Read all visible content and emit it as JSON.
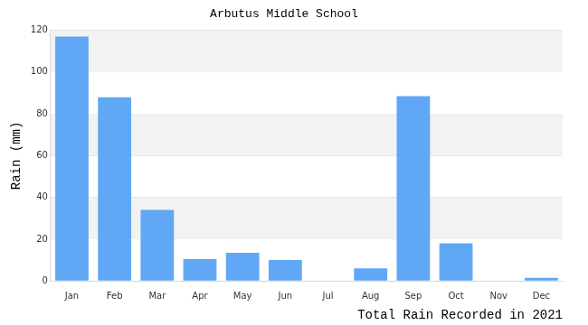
{
  "chart_data": {
    "type": "bar",
    "title": "Arbutus Middle School",
    "x_label": "Total Rain Recorded in 2021",
    "y_label": "Rain (mm)",
    "categories": [
      "Jan",
      "Feb",
      "Mar",
      "Apr",
      "May",
      "Jun",
      "Jul",
      "Aug",
      "Sep",
      "Oct",
      "Nov",
      "Dec"
    ],
    "values": [
      117,
      88,
      34,
      10.5,
      13.5,
      10,
      0,
      6,
      88.5,
      18,
      0,
      1.5
    ],
    "color": "#60a8f5",
    "ylim": [
      0,
      120
    ],
    "yticks": [
      0,
      20,
      40,
      60,
      80,
      100,
      120
    ],
    "grid": true
  }
}
